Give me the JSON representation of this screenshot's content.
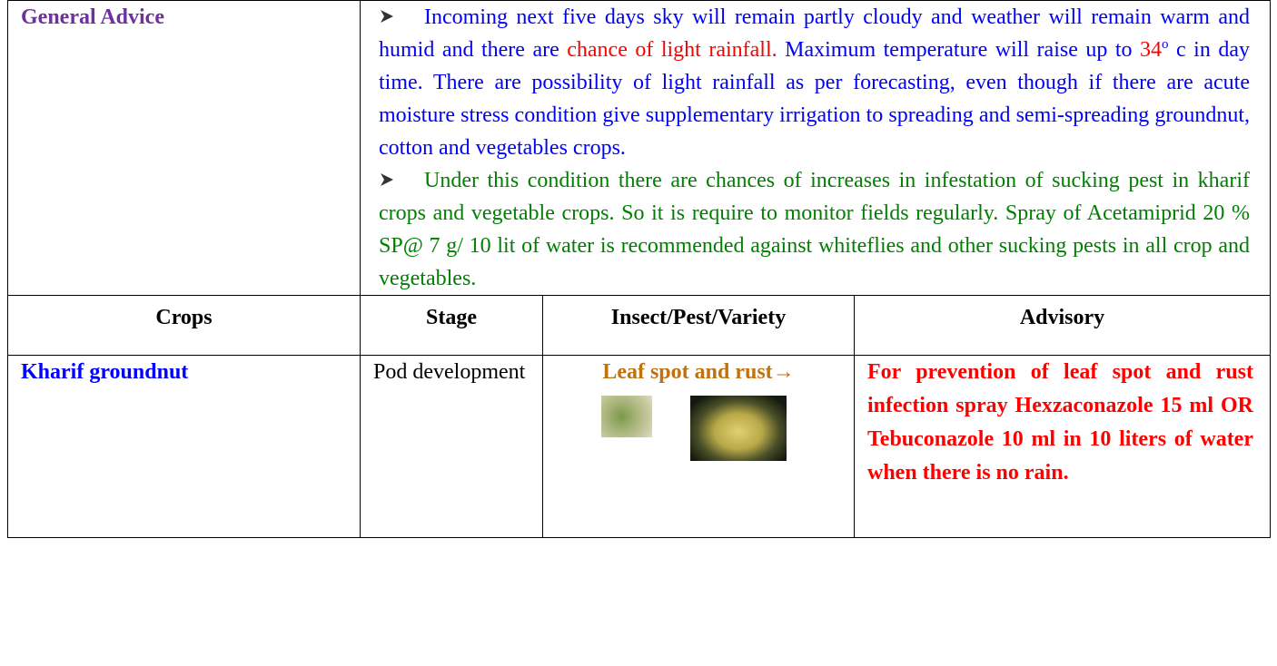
{
  "general_advice": {
    "label": "General Advice",
    "paragraphs": [
      {
        "segments": [
          {
            "text": "Incoming next five days sky will remain partly cloudy and  weather will remain warm and humid and there are ",
            "color": "#0000ff"
          },
          {
            "text": " chance of light rainfall.",
            "color": "#ff0000"
          },
          {
            "text": " Maximum temperature will raise up to ",
            "color": "#0000ff"
          },
          {
            "text": "34",
            "color": "#ff0000"
          },
          {
            "text": "o",
            "color": "#0000ff",
            "sup": true
          },
          {
            "text": " c in day time. There are possibility of light rainfall as per forecasting, even though if there are acute moisture stress condition give supplementary irrigation to spreading and semi-spreading groundnut, cotton and vegetables crops.",
            "color": "#0000ff"
          }
        ]
      },
      {
        "segments": [
          {
            "text": "Under this condition there are chances of increases in infestation of sucking pest in kharif crops and vegetable crops. So it is require to monitor fields regularly. Spray of Acetamiprid 20 % SP@ 7 g/ 10 lit of water is recommended against whiteflies and other sucking pests in all crop and vegetables.",
            "color": "#008000"
          }
        ]
      }
    ]
  },
  "table": {
    "header": [
      "Crops",
      "Stage",
      "Insect/Pest/Variety",
      "Advisory"
    ],
    "rows": [
      [
        "Kharif groundnut",
        "Pod development",
        "Leaf spot and rust→",
        "For prevention of leaf spot and rust infection  spray Hexzaconazole 15 ml OR Tebuconazole 10 ml in 10 liters of water when there is no rain."
      ]
    ]
  }
}
